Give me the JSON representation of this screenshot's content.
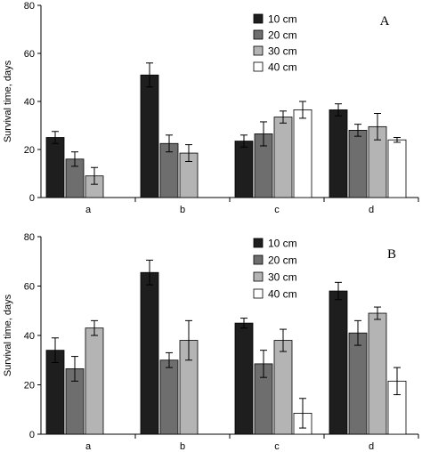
{
  "chart_data": [
    {
      "type": "bar",
      "panel_label": "A",
      "ylabel": "Survival time, days",
      "ylim": [
        0,
        80
      ],
      "yticks": [
        0,
        20,
        40,
        60,
        80
      ],
      "categories": [
        "a",
        "b",
        "c",
        "d"
      ],
      "legend_placement": "top-right",
      "series": [
        {
          "name": "10 cm",
          "color": "#1e1e1e",
          "values": [
            25,
            51,
            23.5,
            36.5
          ],
          "errors": [
            2.5,
            5,
            2.5,
            2.5
          ]
        },
        {
          "name": "20 cm",
          "color": "#6e6e6e",
          "values": [
            16,
            22.5,
            26.5,
            28
          ],
          "errors": [
            3,
            3.5,
            5,
            2.5
          ]
        },
        {
          "name": "30 cm",
          "color": "#b4b4b4",
          "values": [
            9,
            18.5,
            33.5,
            29.5
          ],
          "errors": [
            3.5,
            3.5,
            2.5,
            5.5
          ]
        },
        {
          "name": "40 cm",
          "color": "#ffffff",
          "values": [
            0,
            0,
            36.5,
            24
          ],
          "errors": [
            0,
            0,
            3.5,
            1
          ]
        }
      ]
    },
    {
      "type": "bar",
      "panel_label": "B",
      "ylabel": "Survival time, days",
      "ylim": [
        0,
        80
      ],
      "yticks": [
        0,
        20,
        40,
        60,
        80
      ],
      "categories": [
        "a",
        "b",
        "c",
        "d"
      ],
      "legend_placement": "top-right",
      "series": [
        {
          "name": "10 cm",
          "color": "#1e1e1e",
          "values": [
            34,
            65.5,
            45,
            58
          ],
          "errors": [
            5,
            5,
            2,
            3.5
          ]
        },
        {
          "name": "20 cm",
          "color": "#6e6e6e",
          "values": [
            26.5,
            30,
            28.5,
            41
          ],
          "errors": [
            5,
            3,
            5.5,
            5
          ]
        },
        {
          "name": "30 cm",
          "color": "#b4b4b4",
          "values": [
            43,
            38,
            38,
            49
          ],
          "errors": [
            3,
            8,
            4.5,
            2.5
          ]
        },
        {
          "name": "40 cm",
          "color": "#ffffff",
          "values": [
            0,
            0,
            8.5,
            21.5
          ],
          "errors": [
            0,
            0,
            6,
            5.5
          ]
        }
      ]
    }
  ]
}
